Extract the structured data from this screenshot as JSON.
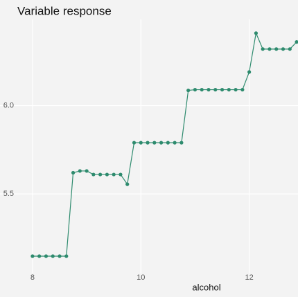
{
  "chart_data": {
    "type": "line",
    "title": "Variable response",
    "xlabel": "alcohol",
    "x": [
      8,
      8.125,
      8.25,
      8.375,
      8.5,
      8.625,
      8.75,
      8.875,
      9,
      9.125,
      9.25,
      9.375,
      9.5,
      9.625,
      9.75,
      9.875,
      10,
      10.125,
      10.25,
      10.375,
      10.5,
      10.625,
      10.75,
      10.875,
      11,
      11.125,
      11.25,
      11.375,
      11.5,
      11.625,
      11.75,
      11.875,
      12,
      12.125,
      12.25,
      12.375,
      12.5,
      12.625,
      12.75,
      12.875
    ],
    "series": [
      {
        "color": "#2e8b6e",
        "values": [
          5.148,
          5.148,
          5.148,
          5.148,
          5.148,
          5.148,
          5.62,
          5.63,
          5.63,
          5.61,
          5.61,
          5.61,
          5.61,
          5.61,
          5.555,
          5.79,
          5.79,
          5.79,
          5.79,
          5.79,
          5.79,
          5.79,
          5.79,
          6.086,
          6.09,
          6.09,
          6.09,
          6.09,
          6.09,
          6.09,
          6.09,
          6.09,
          6.19,
          6.41,
          6.32,
          6.32,
          6.32,
          6.32,
          6.32,
          6.36
        ]
      }
    ],
    "xlim": [
      7.4,
      12.9
    ],
    "ylim": [
      5.05,
      6.48
    ],
    "xticks": [
      8,
      10,
      12
    ],
    "yticks": [
      5.5,
      {
        "value": 6,
        "label": "6.0"
      }
    ],
    "grid": true
  }
}
